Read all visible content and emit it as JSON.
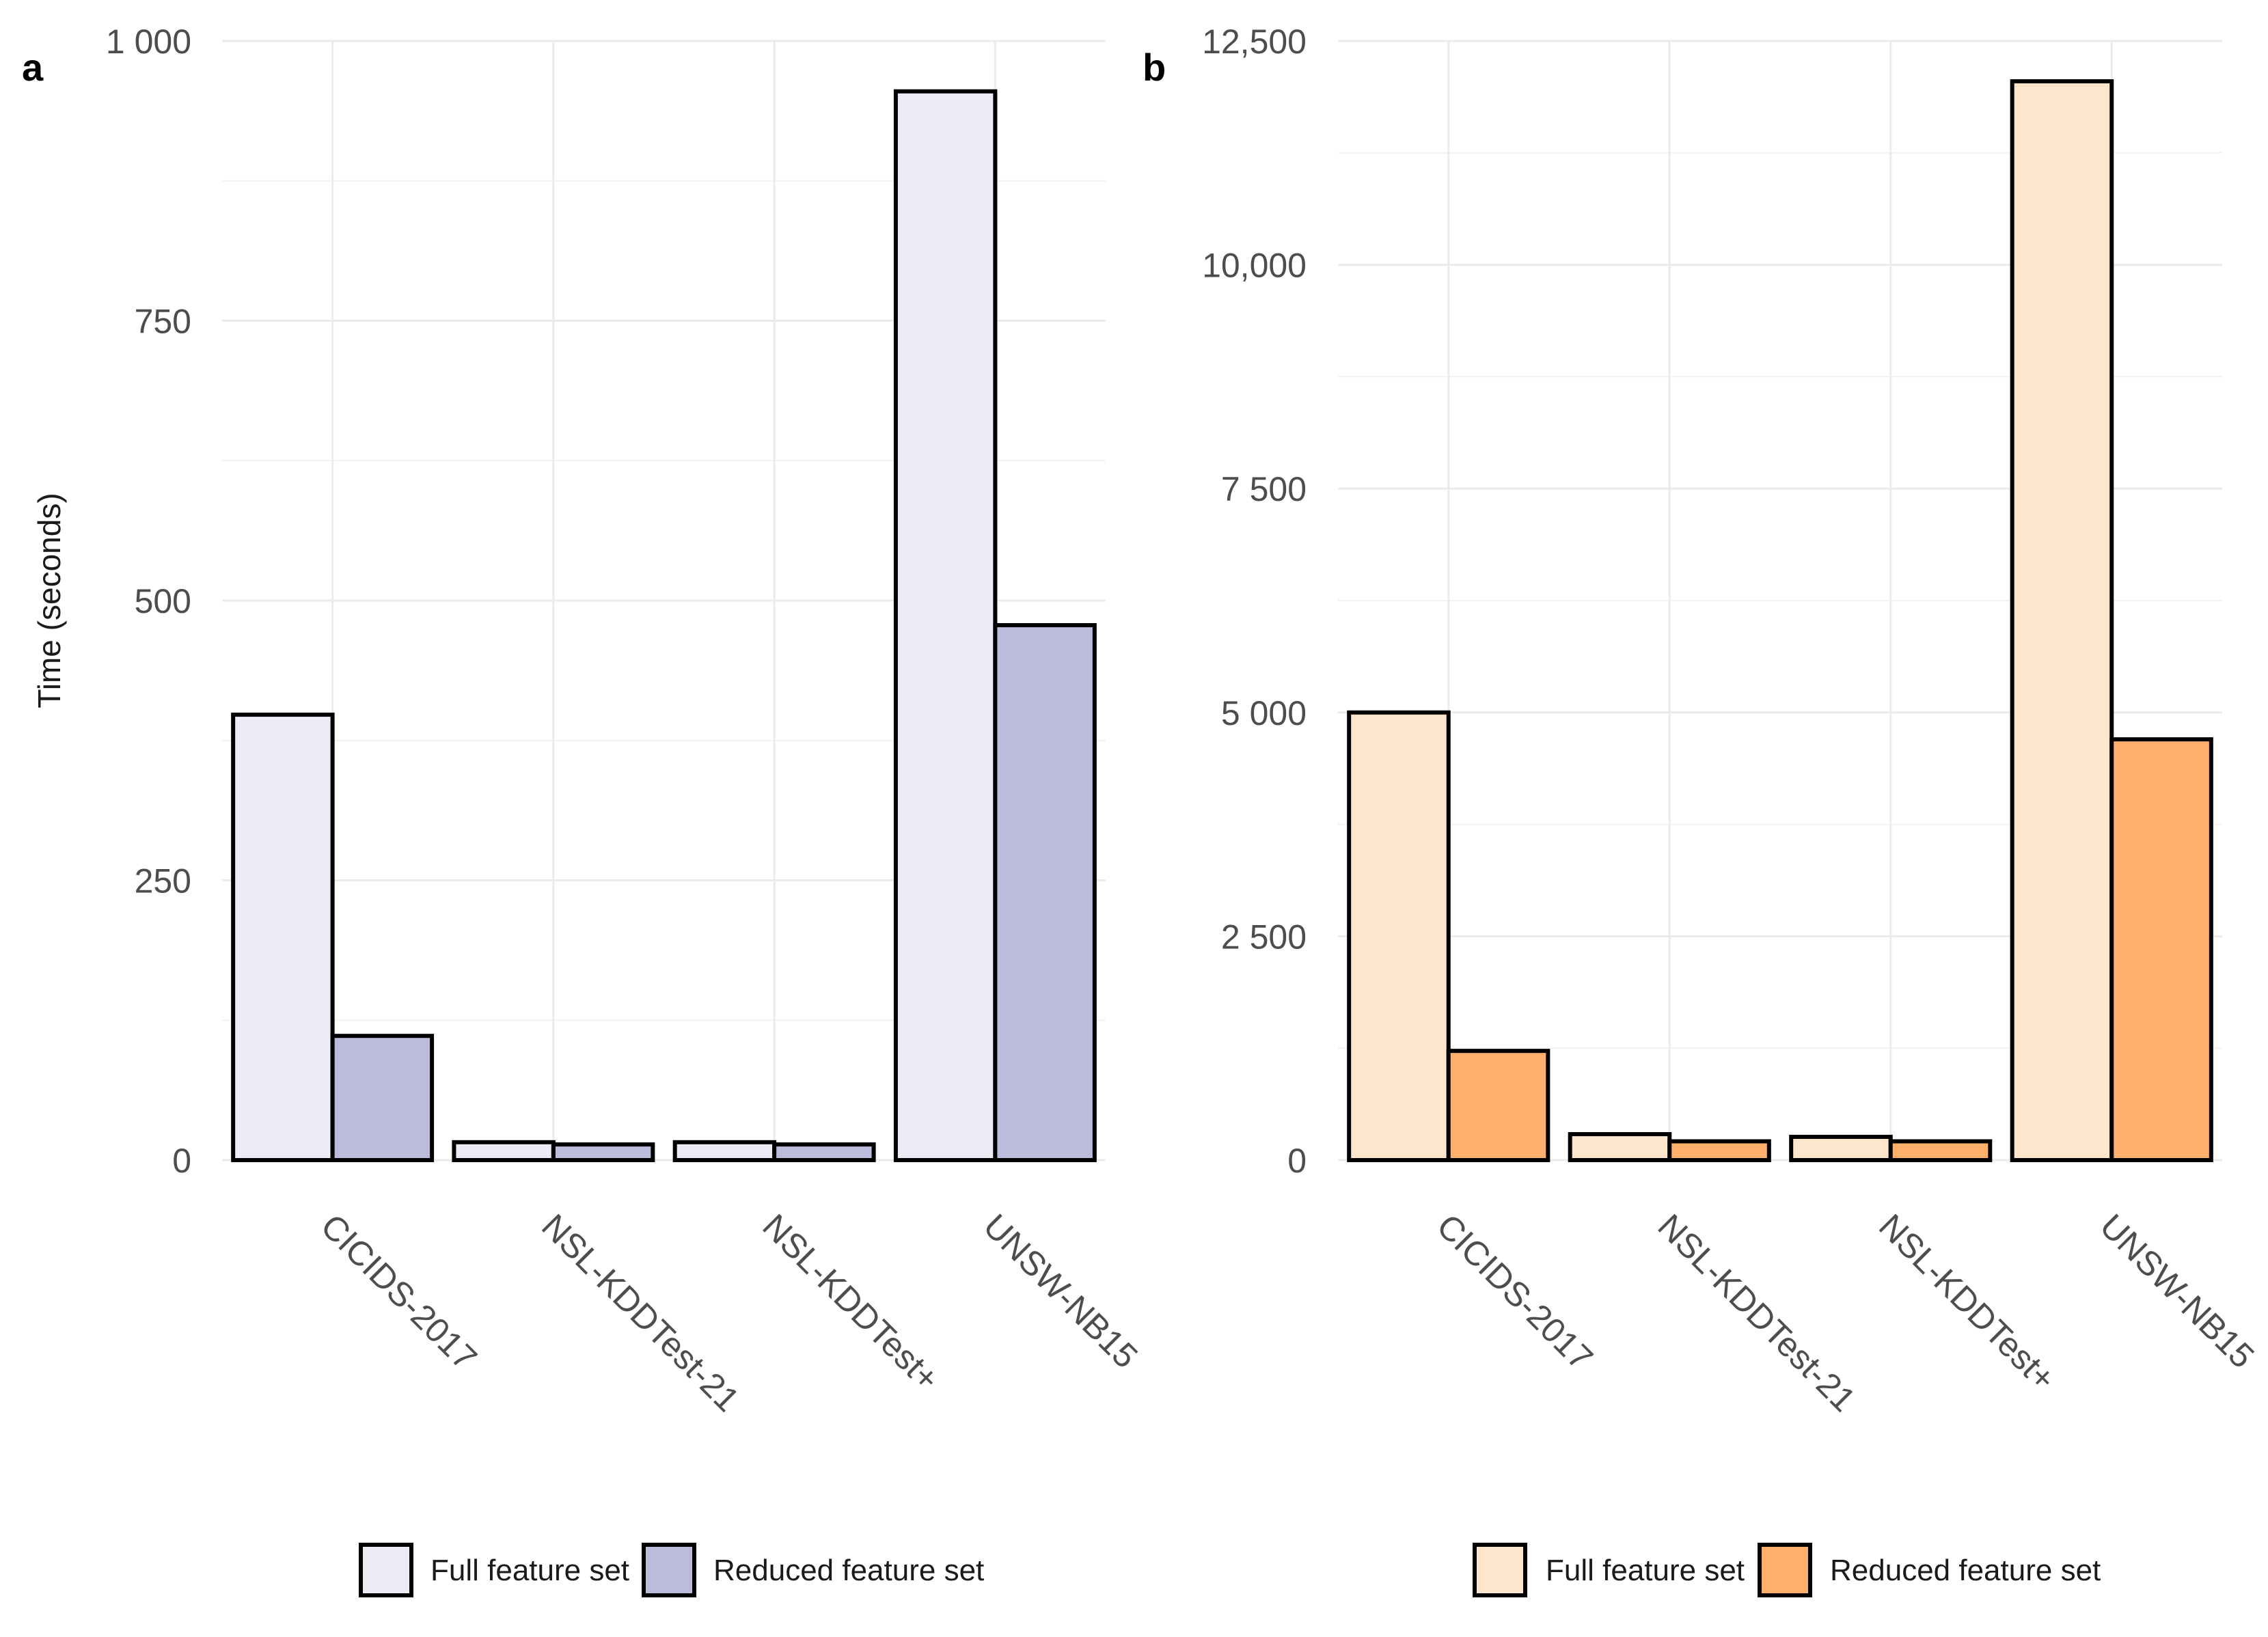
{
  "chart_data": [
    {
      "panel": "a",
      "type": "bar",
      "ylabel": "Time (seconds)",
      "xlabel": "",
      "categories": [
        "CICIDS-2017",
        "NSL-KDDTest-21",
        "NSL-KDDTest+",
        "UNSW-NB15"
      ],
      "series": [
        {
          "name": "Full feature set",
          "values": [
            398,
            16,
            16,
            955
          ],
          "color": "#ececf6"
        },
        {
          "name": "Reduced feature set",
          "values": [
            111,
            14,
            14,
            478
          ],
          "color": "#bbbcdc"
        }
      ],
      "ylim": [
        0,
        1000
      ],
      "yticks": [
        0,
        250,
        500,
        750,
        1000
      ],
      "ytick_labels": [
        "0",
        "250",
        "500",
        "750",
        "1 000"
      ],
      "grid": true,
      "legend_position": "bottom"
    },
    {
      "panel": "b",
      "type": "bar",
      "ylabel": "",
      "xlabel": "",
      "categories": [
        "CICIDS-2017",
        "NSL-KDDTest-21",
        "NSL-KDDTest+",
        "UNSW-NB15"
      ],
      "series": [
        {
          "name": "Full feature set",
          "values": [
            5000,
            290,
            260,
            12050
          ],
          "color": "#fee6cd"
        },
        {
          "name": "Reduced feature set",
          "values": [
            1220,
            210,
            210,
            4700
          ],
          "color": "#fdaf6b"
        }
      ],
      "ylim": [
        0,
        12500
      ],
      "yticks": [
        0,
        2500,
        5000,
        7500,
        10000,
        12500
      ],
      "ytick_labels": [
        "0",
        "2 500",
        "5 000",
        "7 500",
        "10,000",
        "12,500"
      ],
      "grid": true,
      "legend_position": "bottom"
    }
  ]
}
